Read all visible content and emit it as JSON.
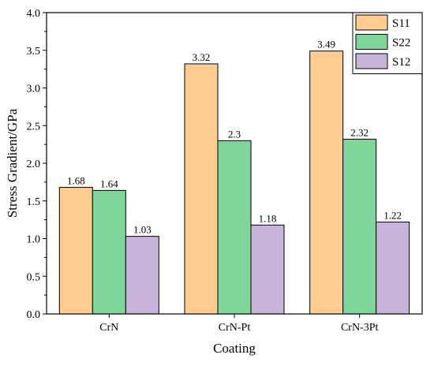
{
  "chart_data": {
    "type": "bar",
    "title": "",
    "xlabel": "Coating",
    "ylabel": "Stress Gradient/GPa",
    "categories": [
      "CrN",
      "CrN-Pt",
      "CrN-3Pt"
    ],
    "series": [
      {
        "name": "S11",
        "values": [
          1.68,
          3.32,
          3.49
        ],
        "labels": [
          "1.68",
          "3.32",
          "3.49"
        ],
        "color": "#FFCC91"
      },
      {
        "name": "S22",
        "values": [
          1.64,
          2.3,
          2.32
        ],
        "labels": [
          "1.64",
          "2.3",
          "2.32"
        ],
        "color": "#7FD69A"
      },
      {
        "name": "S12",
        "values": [
          1.03,
          1.18,
          1.22
        ],
        "labels": [
          "1.03",
          "1.18",
          "1.22"
        ],
        "color": "#C8B3DA"
      }
    ],
    "ylim": [
      0,
      4.0
    ],
    "yticks": [
      "0.0",
      "0.5",
      "1.0",
      "1.5",
      "2.0",
      "2.5",
      "3.0",
      "3.5",
      "4.0"
    ],
    "legend_position": "top-right",
    "grid": false
  }
}
